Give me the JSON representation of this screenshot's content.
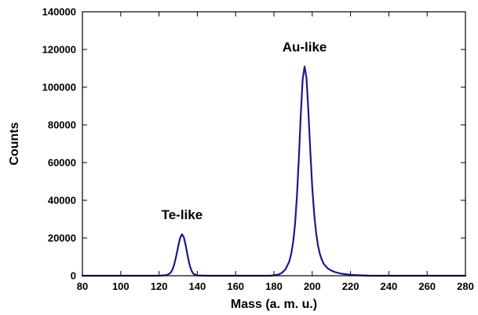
{
  "chart_data": {
    "type": "line",
    "title": "",
    "xlabel": "Mass (a. m. u.)",
    "ylabel": "Counts",
    "xlim": [
      80,
      280
    ],
    "ylim": [
      0,
      140000
    ],
    "x_ticks": [
      80,
      100,
      120,
      140,
      160,
      180,
      200,
      220,
      240,
      260,
      280
    ],
    "y_ticks": [
      0,
      20000,
      40000,
      60000,
      80000,
      100000,
      120000,
      140000
    ],
    "grid": false,
    "legend": "none",
    "line_color": "#1a1a8c",
    "series": [
      {
        "x": [
          80,
          100,
          110,
          120,
          124,
          126,
          127,
          128,
          129,
          130,
          131,
          132,
          133,
          134,
          135,
          136,
          137,
          138,
          140,
          145,
          150,
          160,
          170,
          178,
          182,
          184,
          186,
          188,
          189,
          190,
          191,
          192,
          193,
          194,
          195,
          196,
          197,
          198,
          199,
          200,
          201,
          202,
          203,
          204,
          205,
          206,
          208,
          210,
          212,
          215,
          220,
          225,
          230,
          240,
          250,
          260,
          280
        ],
        "y": [
          0,
          0,
          0,
          0,
          300,
          1500,
          3200,
          6200,
          10500,
          15500,
          20000,
          22000,
          20300,
          15800,
          10300,
          5600,
          2600,
          1000,
          150,
          0,
          0,
          0,
          0,
          0,
          500,
          1400,
          3300,
          7500,
          11500,
          17500,
          27000,
          42000,
          62000,
          85000,
          104000,
          111000,
          105000,
          87000,
          66000,
          47000,
          33000,
          23000,
          16000,
          11500,
          8500,
          6300,
          4000,
          2700,
          1900,
          1100,
          500,
          200,
          0,
          0,
          0,
          0,
          0
        ]
      }
    ],
    "annotations": [
      {
        "text": "Te-like",
        "x": 132,
        "y": 30000
      },
      {
        "text": "Au-like",
        "x": 196,
        "y": 119000
      }
    ]
  }
}
